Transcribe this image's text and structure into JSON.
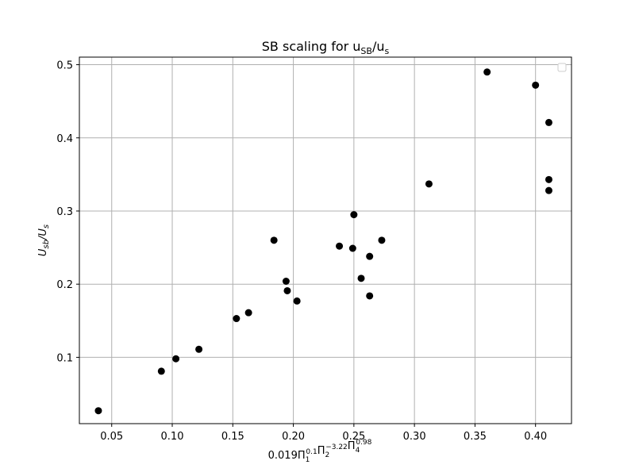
{
  "chart_data": {
    "type": "scatter",
    "title": "SB scaling for u",
    "title_sub": "SB",
    "title_mid": "/u",
    "title_sub2": "s",
    "xlabel": "0.019Π",
    "xlabel_parts": [
      {
        "t": "0.019Π",
        "sub": "1",
        "sup": "0.1"
      },
      {
        "t": "Π",
        "sub": "2",
        "sup": "−3.22"
      },
      {
        "t": "Π",
        "sub": "4",
        "sup": "0.98"
      }
    ],
    "ylabel_main": "U",
    "ylabel_sub1": "sb",
    "ylabel_mid": "/U",
    "ylabel_sub2": "s",
    "xlim": [
      0.0233,
      0.4297
    ],
    "ylim": [
      0.00935,
      0.51035
    ],
    "xticks": [
      0.05,
      0.1,
      0.15,
      0.2,
      0.25,
      0.3,
      0.35,
      0.4
    ],
    "xtick_labels": [
      "0.05",
      "0.10",
      "0.15",
      "0.20",
      "0.25",
      "0.30",
      "0.35",
      "0.40"
    ],
    "yticks": [
      0.1,
      0.2,
      0.3,
      0.4,
      0.5
    ],
    "ytick_labels": [
      "0.1",
      "0.2",
      "0.3",
      "0.4",
      "0.5"
    ],
    "grid": true,
    "legend": "top-right (empty)",
    "marker_color": "#000000",
    "points": [
      {
        "x": 0.039,
        "y": 0.027
      },
      {
        "x": 0.091,
        "y": 0.081
      },
      {
        "x": 0.103,
        "y": 0.098
      },
      {
        "x": 0.122,
        "y": 0.111
      },
      {
        "x": 0.153,
        "y": 0.153
      },
      {
        "x": 0.163,
        "y": 0.161
      },
      {
        "x": 0.184,
        "y": 0.26
      },
      {
        "x": 0.194,
        "y": 0.204
      },
      {
        "x": 0.195,
        "y": 0.191
      },
      {
        "x": 0.203,
        "y": 0.177
      },
      {
        "x": 0.238,
        "y": 0.252
      },
      {
        "x": 0.249,
        "y": 0.249
      },
      {
        "x": 0.25,
        "y": 0.295
      },
      {
        "x": 0.256,
        "y": 0.208
      },
      {
        "x": 0.263,
        "y": 0.238
      },
      {
        "x": 0.263,
        "y": 0.184
      },
      {
        "x": 0.273,
        "y": 0.26
      },
      {
        "x": 0.312,
        "y": 0.337
      },
      {
        "x": 0.36,
        "y": 0.49
      },
      {
        "x": 0.4,
        "y": 0.472
      },
      {
        "x": 0.411,
        "y": 0.421
      },
      {
        "x": 0.411,
        "y": 0.343
      },
      {
        "x": 0.411,
        "y": 0.328
      }
    ]
  }
}
